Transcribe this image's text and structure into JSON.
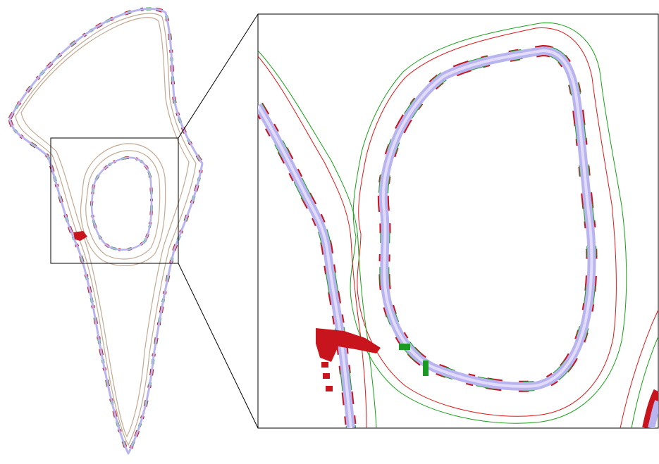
{
  "figure": {
    "description_visible_text": "",
    "colors": {
      "outer_contour_a": "#c2a992",
      "outer_contour_b": "#c2a992",
      "band_red": "#c8141c",
      "band_green": "#1a9a22",
      "band_lavender": "#b8b4ef",
      "band_core": "#e2dcfa",
      "thin_line_red": "#e01818",
      "thin_line_green": "#18a018",
      "frame": "#000000"
    },
    "panels": [
      {
        "id": "overview",
        "label": ""
      },
      {
        "id": "zoom-inset",
        "label": ""
      }
    ]
  }
}
